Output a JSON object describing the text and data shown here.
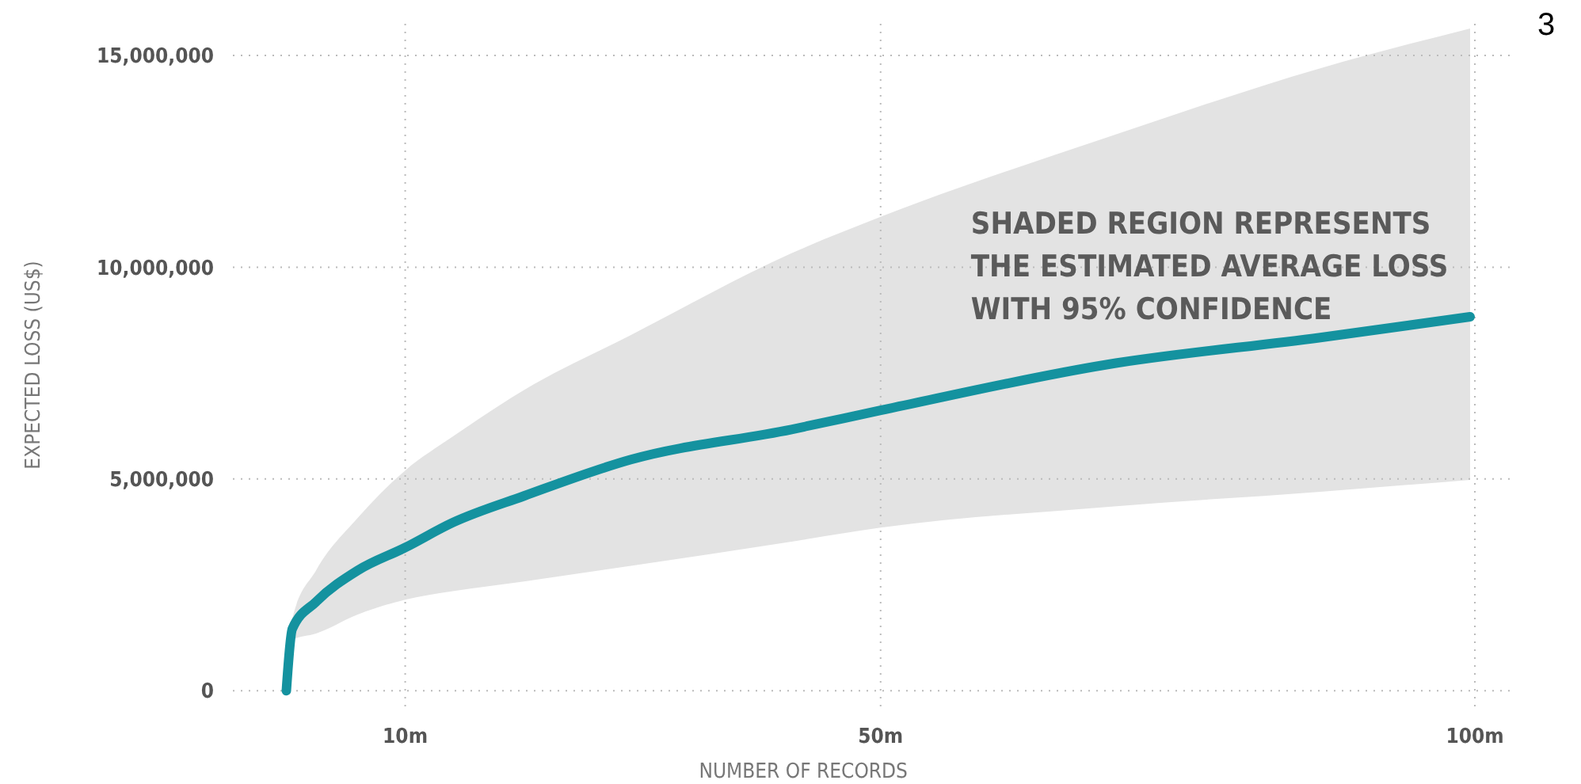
{
  "chart_data": {
    "type": "line",
    "xlabel": "NUMBER OF RECORDS",
    "ylabel": "EXPECTED LOSS (US$)",
    "x": [
      0,
      0.5,
      2.5,
      6,
      10,
      14,
      20,
      29,
      42.5,
      50,
      69,
      87,
      99.6
    ],
    "series": [
      {
        "color": "#14929f",
        "values": [
          0,
          1460000,
          2100000,
          2840000,
          3380000,
          3970000,
          4600000,
          5460000,
          6170000,
          6620000,
          7700000,
          8340000,
          8830000
        ],
        "lower": [
          0,
          1200000,
          1350000,
          1800000,
          2150000,
          2350000,
          2580000,
          2950000,
          3520000,
          3850000,
          4340000,
          4700000,
          4980000
        ],
        "upper": [
          0,
          1700000,
          2840000,
          4080000,
          5200000,
          6000000,
          7100000,
          8400000,
          10330000,
          11190000,
          13060000,
          14700000,
          15640000
        ]
      }
    ],
    "xlim": [
      -4.5,
      103.2
    ],
    "xticks": [
      {
        "value": 10,
        "label": "10m"
      },
      {
        "value": 50,
        "label": "50m"
      },
      {
        "value": 100,
        "label": "100m"
      }
    ],
    "ylim": [
      -370000,
      15750000
    ],
    "yticks": [
      {
        "value": 0,
        "label": "0"
      },
      {
        "value": 5000000,
        "label": "5,000,000"
      },
      {
        "value": 10000000,
        "label": "10,000,000"
      },
      {
        "value": 15000000,
        "label": "15,000,000"
      }
    ],
    "grid": true,
    "annotations": [
      "SHADED REGION REPRESENTS\nTHE ESTIMATED AVERAGE LOSS\nWITH 95% CONFIDENCE",
      "3"
    ]
  }
}
